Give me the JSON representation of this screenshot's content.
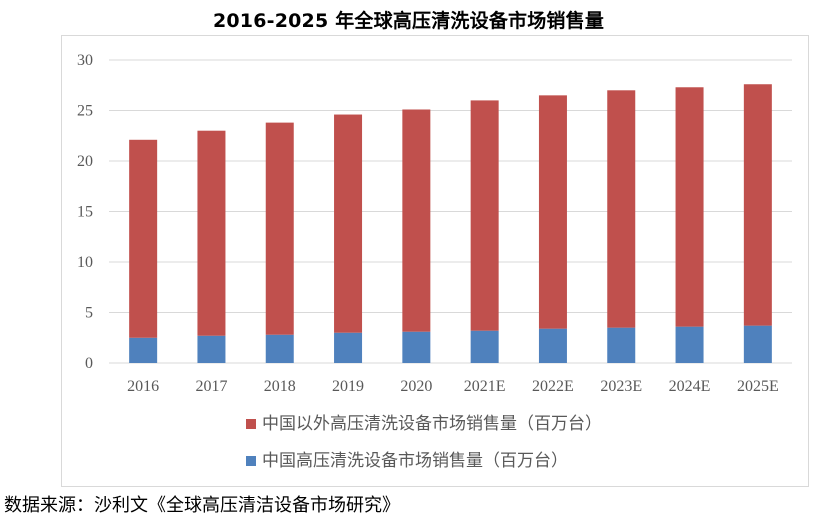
{
  "colors": {
    "outside_china": "#c0504d",
    "china": "#4f81bd",
    "grid": "#d9d9d9",
    "axis_text": "#595959"
  },
  "chart_data": {
    "type": "bar",
    "stacked": true,
    "title": "2016-2025 年全球高压清洗设备市场销售量",
    "categories": [
      "2016",
      "2017",
      "2018",
      "2019",
      "2020",
      "2021E",
      "2022E",
      "2023E",
      "2024E",
      "2025E"
    ],
    "series": [
      {
        "name": "中国高压清洗设备市场销售量（百万台）",
        "color": "#4f81bd",
        "values": [
          2.5,
          2.7,
          2.8,
          3.0,
          3.1,
          3.2,
          3.4,
          3.5,
          3.6,
          3.7
        ]
      },
      {
        "name": "中国以外高压清洗设备市场销售量（百万台）",
        "color": "#c0504d",
        "values": [
          19.6,
          20.3,
          21.0,
          21.6,
          22.0,
          22.8,
          23.1,
          23.5,
          23.7,
          23.9
        ]
      }
    ],
    "yticks": [
      0,
      5,
      10,
      15,
      20,
      25,
      30
    ],
    "ylim": [
      0,
      30
    ],
    "grid": true,
    "legend_position": "bottom"
  },
  "source_note": "数据来源：沙利文《全球高压清洁设备市场研究》"
}
